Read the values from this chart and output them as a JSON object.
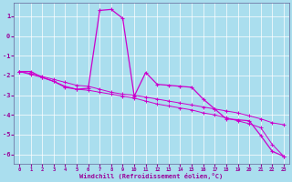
{
  "xlabel": "Windchill (Refroidissement éolien,°C)",
  "bg_color": "#aadeee",
  "line_color": "#cc00cc",
  "x_data": [
    0,
    1,
    2,
    3,
    4,
    5,
    6,
    7,
    8,
    9,
    10,
    11,
    12,
    13,
    14,
    15,
    16,
    17,
    18,
    19,
    20,
    21,
    22,
    23
  ],
  "y_windchill": [
    -1.8,
    -1.8,
    -2.1,
    -2.3,
    -2.6,
    -2.7,
    -2.65,
    1.3,
    1.35,
    0.9,
    -3.05,
    -1.85,
    -2.45,
    -2.5,
    -2.55,
    -2.6,
    -3.2,
    -3.7,
    -4.2,
    -4.25,
    -4.3,
    -5.05,
    -5.85,
    -6.1
  ],
  "y_trend1": [
    -1.8,
    -1.9,
    -2.05,
    -2.2,
    -2.35,
    -2.5,
    -2.55,
    -2.7,
    -2.85,
    -2.95,
    -3.0,
    -3.1,
    -3.2,
    -3.3,
    -3.4,
    -3.5,
    -3.6,
    -3.7,
    -3.8,
    -3.9,
    -4.05,
    -4.2,
    -4.4,
    -4.5
  ],
  "y_trend2": [
    -1.8,
    -1.95,
    -2.1,
    -2.3,
    -2.55,
    -2.7,
    -2.75,
    -2.85,
    -2.95,
    -3.05,
    -3.15,
    -3.3,
    -3.45,
    -3.55,
    -3.65,
    -3.75,
    -3.9,
    -4.0,
    -4.15,
    -4.3,
    -4.45,
    -4.65,
    -5.5,
    -6.1
  ],
  "ylim": [
    -6.5,
    1.7
  ],
  "xlim": [
    -0.5,
    23.5
  ],
  "yticks": [
    -6,
    -5,
    -4,
    -3,
    -2,
    -1,
    0,
    1
  ],
  "xticks": [
    0,
    1,
    2,
    3,
    4,
    5,
    6,
    7,
    8,
    9,
    10,
    11,
    12,
    13,
    14,
    15,
    16,
    17,
    18,
    19,
    20,
    21,
    22,
    23
  ],
  "grid_color": "#ffffff",
  "tick_color": "#990099",
  "spine_color": "#666699"
}
